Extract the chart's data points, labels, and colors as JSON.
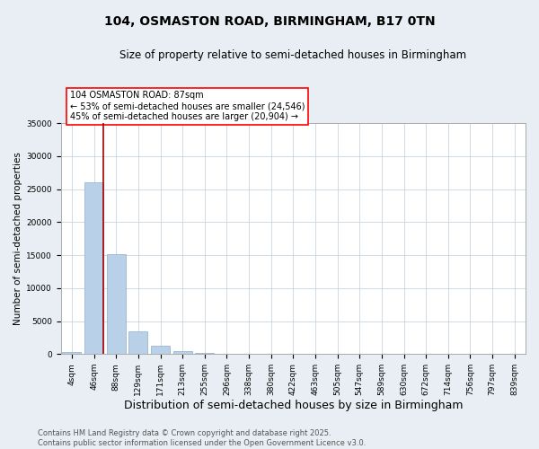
{
  "title": "104, OSMASTON ROAD, BIRMINGHAM, B17 0TN",
  "subtitle": "Size of property relative to semi-detached houses in Birmingham",
  "xlabel": "Distribution of semi-detached houses by size in Birmingham",
  "ylabel": "Number of semi-detached properties",
  "categories": [
    "4sqm",
    "46sqm",
    "88sqm",
    "129sqm",
    "171sqm",
    "213sqm",
    "255sqm",
    "296sqm",
    "338sqm",
    "380sqm",
    "422sqm",
    "463sqm",
    "505sqm",
    "547sqm",
    "589sqm",
    "630sqm",
    "672sqm",
    "714sqm",
    "756sqm",
    "797sqm",
    "839sqm"
  ],
  "values": [
    280,
    26000,
    15200,
    3500,
    1200,
    400,
    200,
    0,
    0,
    0,
    0,
    0,
    0,
    0,
    0,
    0,
    0,
    0,
    0,
    0,
    0
  ],
  "bar_color": "#b8d0e8",
  "bar_edgecolor": "#90aacc",
  "vline_x_index": 1,
  "vline_color": "#aa0000",
  "annotation_text": "104 OSMASTON ROAD: 87sqm\n← 53% of semi-detached houses are smaller (24,546)\n45% of semi-detached houses are larger (20,904) →",
  "annotation_box_color": "white",
  "annotation_box_edgecolor": "red",
  "ylim": [
    0,
    35000
  ],
  "yticks": [
    0,
    5000,
    10000,
    15000,
    20000,
    25000,
    30000,
    35000
  ],
  "footer_line1": "Contains HM Land Registry data © Crown copyright and database right 2025.",
  "footer_line2": "Contains public sector information licensed under the Open Government Licence v3.0.",
  "background_color": "#e8eef4",
  "plot_background": "white",
  "grid_color": "#c8d4de",
  "title_fontsize": 10,
  "subtitle_fontsize": 8.5,
  "xlabel_fontsize": 9,
  "ylabel_fontsize": 7.5,
  "tick_fontsize": 6.5,
  "annotation_fontsize": 7,
  "footer_fontsize": 6
}
